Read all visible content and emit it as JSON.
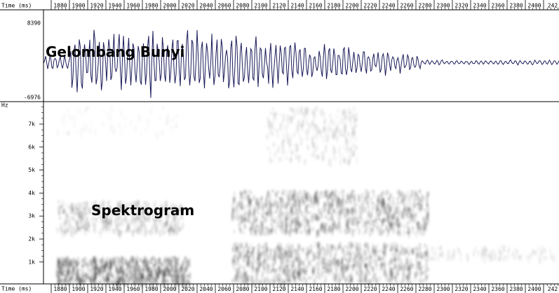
{
  "time_axis": {
    "title": "Time (ms)",
    "labels": [
      "1880",
      "1900",
      "1920",
      "1940",
      "1960",
      "1980",
      "2000",
      "2020",
      "2040",
      "2060",
      "2080",
      "2100",
      "2120",
      "2140",
      "2160",
      "2180",
      "2200",
      "2220",
      "2240",
      "2260",
      "2280",
      "2300",
      "2320",
      "2340",
      "2360",
      "2380",
      "2400",
      "242"
    ]
  },
  "waveform": {
    "max_label": "8390",
    "min_label": "-6976",
    "annotation": "Gelombang Bunyi"
  },
  "spectrogram": {
    "unit": "Hz",
    "freq_labels": [
      "7k",
      "6k",
      "5k",
      "4k",
      "3k",
      "2k",
      "1k"
    ],
    "annotation": "Spektrogram"
  }
}
